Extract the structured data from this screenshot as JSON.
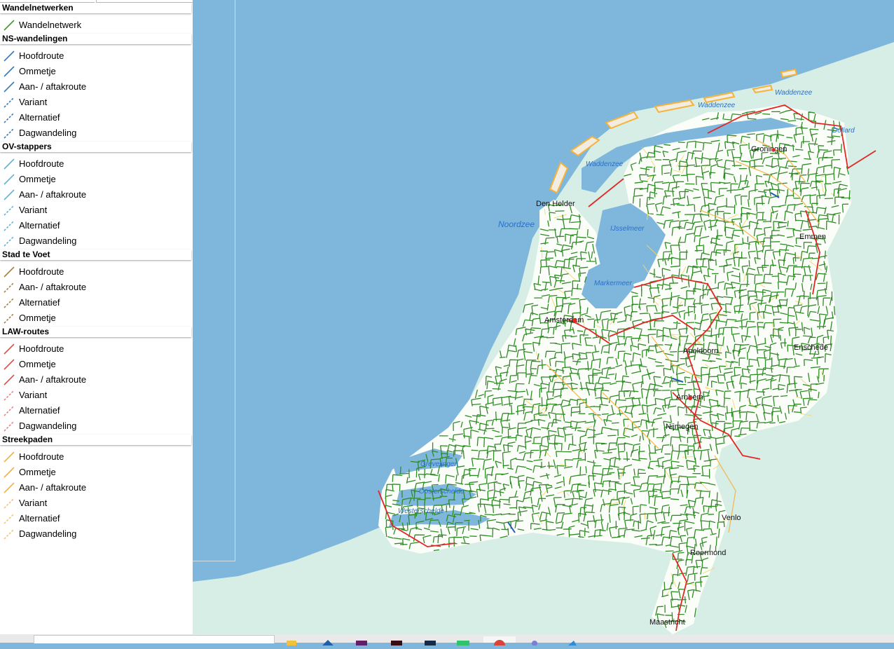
{
  "legend": {
    "groups": [
      {
        "title": "Wandelnetwerken",
        "items": [
          {
            "label": "Wandelnetwerk",
            "color": "#3e9a2f",
            "dashed": false
          }
        ]
      },
      {
        "title": "NS-wandelingen",
        "items": [
          {
            "label": "Hoofdroute",
            "color": "#2f7cc1",
            "dashed": false
          },
          {
            "label": "Ommetje",
            "color": "#2f7cc1",
            "dashed": false
          },
          {
            "label": "Aan- / aftakroute",
            "color": "#2f7cc1",
            "dashed": false
          },
          {
            "label": "Variant",
            "color": "#2f7cc1",
            "dashed": true
          },
          {
            "label": "Alternatief",
            "color": "#2f7cc1",
            "dashed": true
          },
          {
            "label": "Dagwandeling",
            "color": "#2f7cc1",
            "dashed": true
          }
        ]
      },
      {
        "title": "OV-stappers",
        "items": [
          {
            "label": "Hoofdroute",
            "color": "#5fb3d9",
            "dashed": false
          },
          {
            "label": "Ommetje",
            "color": "#5fb3d9",
            "dashed": false
          },
          {
            "label": "Aan- / aftakroute",
            "color": "#5fb3d9",
            "dashed": false
          },
          {
            "label": "Variant",
            "color": "#5fb3d9",
            "dashed": true
          },
          {
            "label": "Alternatief",
            "color": "#5fb3d9",
            "dashed": true
          },
          {
            "label": "Dagwandeling",
            "color": "#5fb3d9",
            "dashed": true
          }
        ]
      },
      {
        "title": "Stad te Voet",
        "items": [
          {
            "label": "Hoofdroute",
            "color": "#a97f3a",
            "dashed": false
          },
          {
            "label": "Aan- / aftakroute",
            "color": "#a97f3a",
            "dashed": true
          },
          {
            "label": "Alternatief",
            "color": "#a97f3a",
            "dashed": true
          },
          {
            "label": "Ommetje",
            "color": "#a97f3a",
            "dashed": true
          }
        ]
      },
      {
        "title": "LAW-routes",
        "items": [
          {
            "label": "Hoofdroute",
            "color": "#e84a4a",
            "dashed": false
          },
          {
            "label": "Ommetje",
            "color": "#e84a4a",
            "dashed": false
          },
          {
            "label": "Aan- / aftakroute",
            "color": "#e84a4a",
            "dashed": false
          },
          {
            "label": "Variant",
            "color": "#ee8080",
            "dashed": true
          },
          {
            "label": "Alternatief",
            "color": "#ee8080",
            "dashed": true
          },
          {
            "label": "Dagwandeling",
            "color": "#ee8080",
            "dashed": true
          }
        ]
      },
      {
        "title": "Streekpaden",
        "items": [
          {
            "label": "Hoofdroute",
            "color": "#f5b23c",
            "dashed": false
          },
          {
            "label": "Ommetje",
            "color": "#f5b23c",
            "dashed": false
          },
          {
            "label": "Aan- / aftakroute",
            "color": "#f5b23c",
            "dashed": false
          },
          {
            "label": "Variant",
            "color": "#f5c46a",
            "dashed": true
          },
          {
            "label": "Alternatief",
            "color": "#f5c46a",
            "dashed": true
          },
          {
            "label": "Dagwandeling",
            "color": "#f5c46a",
            "dashed": true
          }
        ]
      }
    ]
  },
  "map": {
    "colors": {
      "sea": "#7fb7dc",
      "land_outside": "#d6eee6",
      "land_nl": "#ffffff",
      "network": "#2e8b25",
      "law": "#e32626",
      "streekpad": "#f5b23c"
    },
    "cities": [
      "Den Helder",
      "Groningen",
      "Emmen",
      "Amsterdam",
      "Apeldoorn",
      "Enschede",
      "Arnhem",
      "Nijmegen",
      "Venlo",
      "Roermond",
      "Maastricht"
    ],
    "water": [
      "Noordzee",
      "Waddenzee",
      "Waddenzee",
      "Waddenzee",
      "Dollard",
      "IJsselmeer",
      "Markermeer",
      "Grevelingen",
      "Oosterschelde",
      "Westerschelde"
    ]
  },
  "taskbar": {
    "icons": [
      "file-explorer-icon",
      "edge-browser-icon",
      "slack-icon",
      "acrobat-icon",
      "terminal-icon",
      "green-app-icon",
      "chrome-icon",
      "teams-icon",
      "blue-app-icon"
    ]
  }
}
